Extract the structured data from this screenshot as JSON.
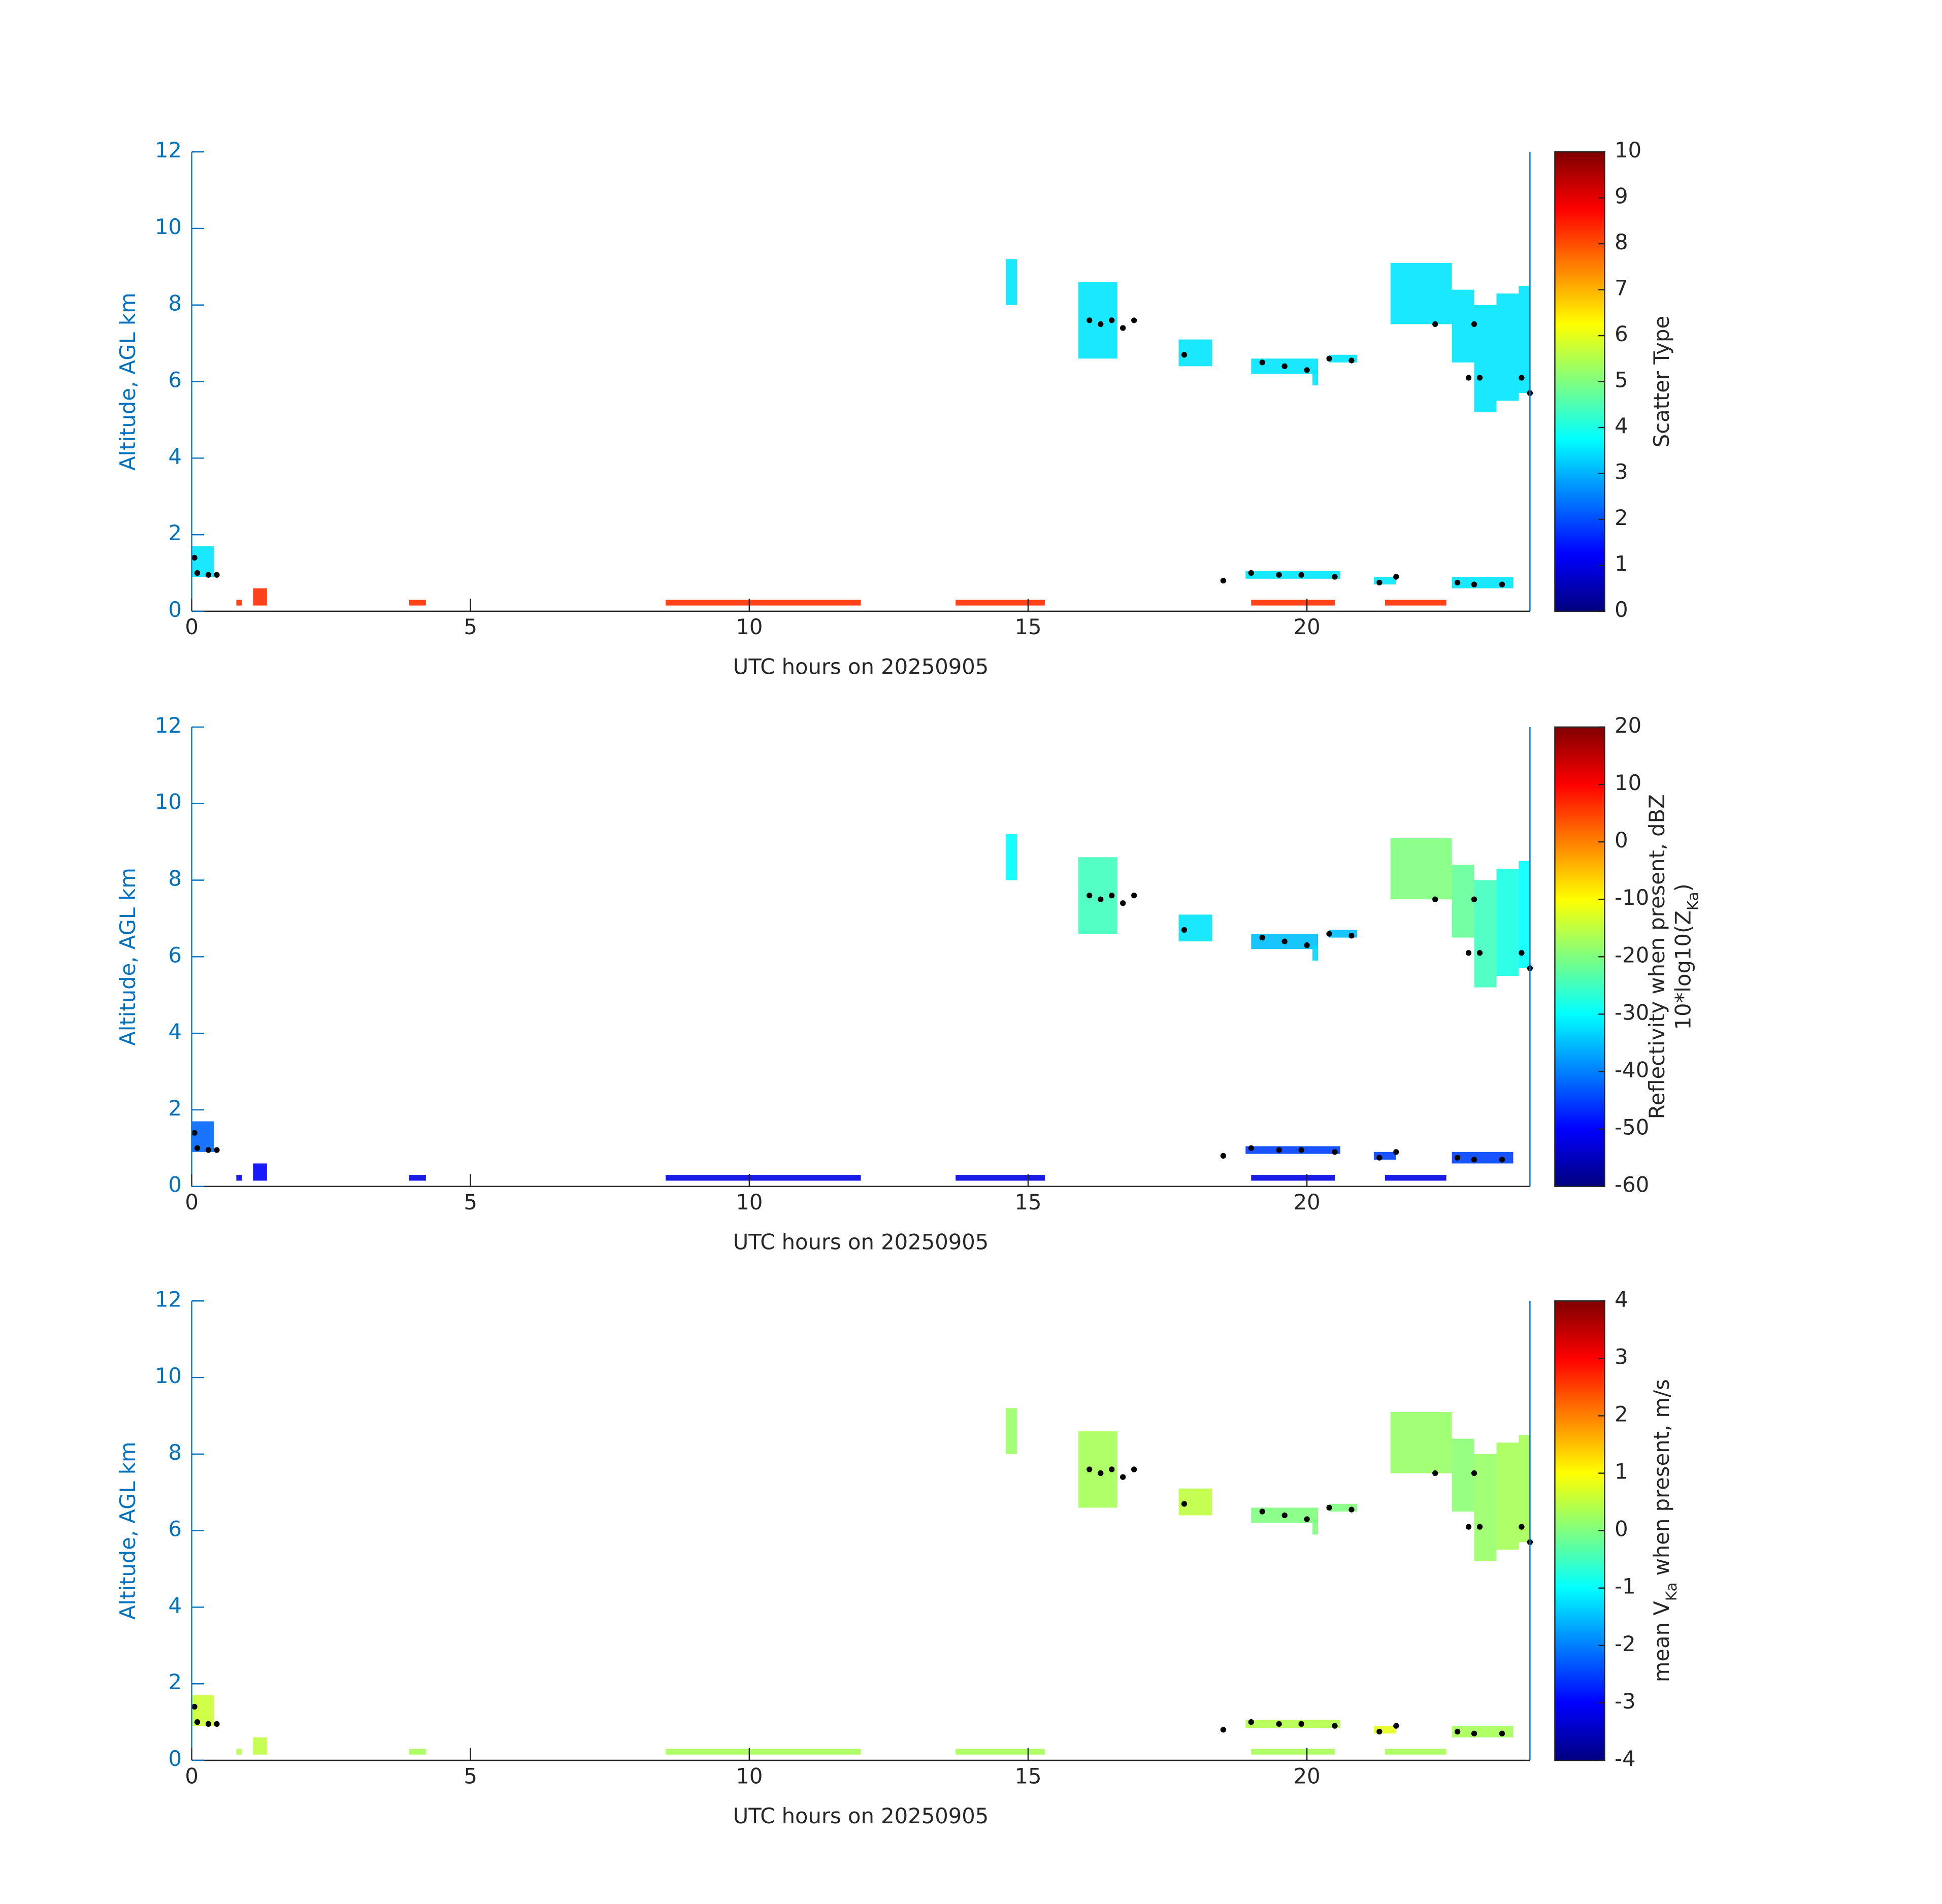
{
  "chart_data": [
    {
      "type": "heatmap",
      "xlabel": "UTC hours on 20250905",
      "ylabel": "Altitude, AGL km",
      "colorbar_label": [
        [
          "Scatter Type"
        ]
      ],
      "colormap": "jet",
      "xlim": [
        0,
        24
      ],
      "ylim": [
        0,
        12
      ],
      "xticks": [
        0,
        5,
        10,
        15,
        20
      ],
      "yticks": [
        0,
        2,
        4,
        6,
        8,
        10,
        12
      ],
      "clim": [
        0,
        10
      ],
      "cticks": [
        0,
        1,
        2,
        3,
        4,
        5,
        6,
        7,
        8,
        9,
        10
      ],
      "cells": {
        "x0": [
          14.6,
          15.9,
          17.7,
          19.0,
          20.1,
          20.4,
          21.5,
          22.6,
          23.0,
          23.4,
          23.8,
          0.0,
          18.9,
          21.2,
          0.8,
          1.1,
          8.5,
          13.7,
          19.0,
          21.4,
          3.9,
          22.6
        ],
        "x1": [
          14.8,
          16.6,
          18.3,
          20.2,
          20.2,
          20.9,
          22.6,
          23.0,
          23.4,
          23.8,
          24.0,
          0.4,
          20.6,
          21.6,
          0.9,
          1.35,
          12.0,
          15.3,
          20.5,
          22.5,
          4.2,
          23.7
        ],
        "y0": [
          8.0,
          6.6,
          6.4,
          6.2,
          5.9,
          6.5,
          7.5,
          6.5,
          5.2,
          5.5,
          5.7,
          0.9,
          0.85,
          0.7,
          0.15,
          0.15,
          0.15,
          0.15,
          0.15,
          0.15,
          0.15,
          0.6
        ],
        "y1": [
          9.2,
          8.6,
          7.1,
          6.6,
          6.3,
          6.7,
          9.1,
          8.4,
          8.0,
          8.3,
          8.5,
          1.7,
          1.05,
          0.9,
          0.3,
          0.6,
          0.3,
          0.3,
          0.3,
          0.3,
          0.3,
          0.9
        ],
        "values": [
          3.5,
          3.5,
          3.5,
          3.5,
          3.5,
          3.5,
          3.5,
          3.5,
          3.5,
          3.5,
          3.5,
          3.5,
          3.5,
          3.5,
          8.3,
          8.3,
          8.3,
          8.3,
          8.3,
          8.3,
          8.3,
          3.5
        ]
      },
      "cloud_base": {
        "x": [
          0.05,
          0.1,
          0.3,
          0.45,
          16.1,
          16.3,
          16.5,
          16.7,
          16.9,
          17.8,
          19.2,
          19.6,
          20.0,
          20.4,
          20.8,
          22.3,
          23.0,
          22.9,
          23.1,
          23.85,
          24.0,
          18.5,
          19.0,
          19.5,
          19.9,
          20.5,
          21.3,
          21.6,
          22.7,
          23.0,
          23.5
        ],
        "y": [
          1.4,
          1.0,
          0.95,
          0.95,
          7.6,
          7.5,
          7.6,
          7.4,
          7.6,
          6.7,
          6.5,
          6.4,
          6.3,
          6.6,
          6.55,
          7.5,
          7.5,
          6.1,
          6.1,
          6.1,
          5.7,
          0.8,
          1.0,
          0.95,
          0.95,
          0.9,
          0.75,
          0.9,
          0.75,
          0.7,
          0.7
        ]
      }
    },
    {
      "type": "heatmap",
      "xlabel": "UTC hours on 20250905",
      "ylabel": "Altitude, AGL km",
      "colorbar_label": [
        [
          "Reflectivity when present, dBZ"
        ],
        [
          "10*log10(Z",
          {
            "sub": "Ka"
          },
          ")"
        ]
      ],
      "colormap": "jet",
      "xlim": [
        0,
        24
      ],
      "ylim": [
        0,
        12
      ],
      "xticks": [
        0,
        5,
        10,
        15,
        20
      ],
      "yticks": [
        0,
        2,
        4,
        6,
        8,
        10,
        12
      ],
      "clim": [
        -60,
        20
      ],
      "cticks": [
        -60,
        -50,
        -40,
        -30,
        -20,
        -10,
        0,
        10,
        20
      ],
      "cells": {
        "x0": [
          14.6,
          15.9,
          17.7,
          19.0,
          20.1,
          20.4,
          21.5,
          22.6,
          23.0,
          23.4,
          23.8,
          0.0,
          18.9,
          21.2,
          0.8,
          1.1,
          8.5,
          13.7,
          19.0,
          21.4,
          3.9,
          22.6
        ],
        "x1": [
          14.8,
          16.6,
          18.3,
          20.2,
          20.2,
          20.9,
          22.6,
          23.0,
          23.4,
          23.8,
          24.0,
          0.4,
          20.6,
          21.6,
          0.9,
          1.35,
          12.0,
          15.3,
          20.5,
          22.5,
          4.2,
          23.7
        ],
        "y0": [
          8.0,
          6.6,
          6.4,
          6.2,
          5.9,
          6.5,
          7.5,
          6.5,
          5.2,
          5.5,
          5.7,
          0.9,
          0.85,
          0.7,
          0.15,
          0.15,
          0.15,
          0.15,
          0.15,
          0.15,
          0.15,
          0.6
        ],
        "y1": [
          9.2,
          8.6,
          7.1,
          6.6,
          6.3,
          6.7,
          9.1,
          8.4,
          8.0,
          8.3,
          8.5,
          1.7,
          1.05,
          0.9,
          0.3,
          0.6,
          0.3,
          0.3,
          0.3,
          0.3,
          0.3,
          0.9
        ],
        "values": [
          -30,
          -25,
          -32,
          -35,
          -33,
          -35,
          -20,
          -22,
          -25,
          -28,
          -30,
          -42,
          -45,
          -45,
          -52,
          -50,
          -52,
          -52,
          -52,
          -52,
          -52,
          -45
        ]
      },
      "cloud_base": {
        "x": [
          0.05,
          0.1,
          0.3,
          0.45,
          16.1,
          16.3,
          16.5,
          16.7,
          16.9,
          17.8,
          19.2,
          19.6,
          20.0,
          20.4,
          20.8,
          22.3,
          23.0,
          22.9,
          23.1,
          23.85,
          24.0,
          18.5,
          19.0,
          19.5,
          19.9,
          20.5,
          21.3,
          21.6,
          22.7,
          23.0,
          23.5
        ],
        "y": [
          1.4,
          1.0,
          0.95,
          0.95,
          7.6,
          7.5,
          7.6,
          7.4,
          7.6,
          6.7,
          6.5,
          6.4,
          6.3,
          6.6,
          6.55,
          7.5,
          7.5,
          6.1,
          6.1,
          6.1,
          5.7,
          0.8,
          1.0,
          0.95,
          0.95,
          0.9,
          0.75,
          0.9,
          0.75,
          0.7,
          0.7
        ]
      }
    },
    {
      "type": "heatmap",
      "xlabel": "UTC hours on 20250905",
      "ylabel": "Altitude, AGL km",
      "colorbar_label": [
        [
          "mean V",
          {
            "sub": "Ka"
          },
          " when present, m/s"
        ]
      ],
      "colormap": "jet",
      "xlim": [
        0,
        24
      ],
      "ylim": [
        0,
        12
      ],
      "xticks": [
        0,
        5,
        10,
        15,
        20
      ],
      "yticks": [
        0,
        2,
        4,
        6,
        8,
        10,
        12
      ],
      "clim": [
        -4,
        4
      ],
      "cticks": [
        -4,
        -3,
        -2,
        -1,
        0,
        1,
        2,
        3,
        4
      ],
      "cells": {
        "x0": [
          14.6,
          15.9,
          17.7,
          19.0,
          20.1,
          20.4,
          21.5,
          22.6,
          23.0,
          23.4,
          23.8,
          0.0,
          18.9,
          21.2,
          0.8,
          1.1,
          8.5,
          13.7,
          19.0,
          21.4,
          3.9,
          22.6
        ],
        "x1": [
          14.8,
          16.6,
          18.3,
          20.2,
          20.2,
          20.9,
          22.6,
          23.0,
          23.4,
          23.8,
          24.0,
          0.4,
          20.6,
          21.6,
          0.9,
          1.35,
          12.0,
          15.3,
          20.5,
          22.5,
          4.2,
          23.7
        ],
        "y0": [
          8.0,
          6.6,
          6.4,
          6.2,
          5.9,
          6.5,
          7.5,
          6.5,
          5.2,
          5.5,
          5.7,
          0.9,
          0.85,
          0.7,
          0.15,
          0.15,
          0.15,
          0.15,
          0.15,
          0.15,
          0.15,
          0.6
        ],
        "y1": [
          9.2,
          8.6,
          7.1,
          6.6,
          6.3,
          6.7,
          9.1,
          8.4,
          8.0,
          8.3,
          8.5,
          1.7,
          1.05,
          0.9,
          0.3,
          0.6,
          0.3,
          0.3,
          0.3,
          0.3,
          0.3,
          0.9
        ],
        "values": [
          0.2,
          0.3,
          0.5,
          0.0,
          0.0,
          0.0,
          0.2,
          0.1,
          0.2,
          0.3,
          0.3,
          0.6,
          0.4,
          0.8,
          0.4,
          0.5,
          0.3,
          0.3,
          0.3,
          0.3,
          0.3,
          0.3
        ]
      },
      "cloud_base": {
        "x": [
          0.05,
          0.1,
          0.3,
          0.45,
          16.1,
          16.3,
          16.5,
          16.7,
          16.9,
          17.8,
          19.2,
          19.6,
          20.0,
          20.4,
          20.8,
          22.3,
          23.0,
          22.9,
          23.1,
          23.85,
          24.0,
          18.5,
          19.0,
          19.5,
          19.9,
          20.5,
          21.3,
          21.6,
          22.7,
          23.0,
          23.5
        ],
        "y": [
          1.4,
          1.0,
          0.95,
          0.95,
          7.6,
          7.5,
          7.6,
          7.4,
          7.6,
          6.7,
          6.5,
          6.4,
          6.3,
          6.6,
          6.55,
          7.5,
          7.5,
          6.1,
          6.1,
          6.1,
          5.7,
          0.8,
          1.0,
          0.95,
          0.95,
          0.9,
          0.75,
          0.9,
          0.75,
          0.7,
          0.7
        ]
      }
    }
  ]
}
